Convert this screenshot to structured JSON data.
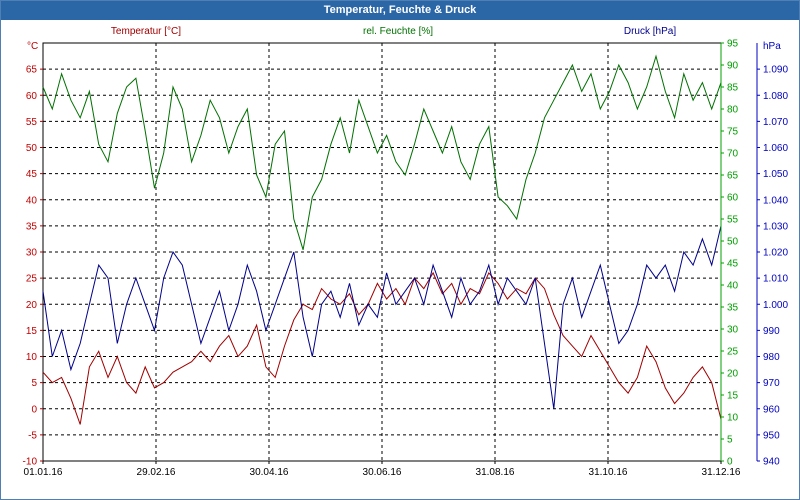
{
  "window": {
    "title": "Temperatur, Feuchte & Druck"
  },
  "chart_data": {
    "type": "line",
    "title": "Temperatur, Feuchte & Druck",
    "grid": true,
    "x_ticks": [
      "01.01.16",
      "29.02.16",
      "30.04.16",
      "30.06.16",
      "31.08.16",
      "31.10.16",
      "31.12.16"
    ],
    "xlim": [
      0,
      365
    ],
    "axes": {
      "temp": {
        "unit_label": "°C",
        "ylim": [
          -10,
          70
        ],
        "ticks": [
          -10,
          -5,
          0,
          5,
          10,
          15,
          20,
          25,
          30,
          35,
          40,
          45,
          50,
          55,
          60,
          65
        ],
        "color": "#c00000"
      },
      "hum": {
        "unit_label": "%",
        "ylim": [
          0,
          95
        ],
        "ticks": [
          0,
          5,
          10,
          15,
          20,
          25,
          30,
          35,
          40,
          45,
          50,
          55,
          60,
          65,
          70,
          75,
          80,
          85,
          90,
          95
        ],
        "color": "#00a000"
      },
      "press": {
        "unit_label": "hPa",
        "ylim": [
          940,
          1100
        ],
        "ticks": [
          "940",
          "950",
          "960",
          "970",
          "980",
          "990",
          "1.000",
          "1.010",
          "1.020",
          "1.030",
          "1.040",
          "1.050",
          "1.060",
          "1.070",
          "1.080",
          "1.090"
        ],
        "color": "#0000c0"
      }
    },
    "series": [
      {
        "name": "Temperatur [°C]",
        "axis": "temp",
        "color": "#a00000",
        "x": [
          0,
          5,
          10,
          15,
          20,
          25,
          30,
          35,
          40,
          45,
          50,
          55,
          60,
          65,
          70,
          75,
          80,
          85,
          90,
          95,
          100,
          105,
          110,
          115,
          120,
          125,
          130,
          135,
          140,
          145,
          150,
          155,
          160,
          165,
          170,
          175,
          180,
          185,
          190,
          195,
          200,
          205,
          210,
          215,
          220,
          225,
          230,
          235,
          240,
          245,
          250,
          255,
          260,
          265,
          270,
          275,
          280,
          285,
          290,
          295,
          300,
          305,
          310,
          315,
          320,
          325,
          330,
          335,
          340,
          345,
          350,
          355,
          360,
          365
        ],
        "y": [
          7,
          5,
          6,
          2,
          -3,
          8,
          11,
          6,
          10,
          5,
          3,
          8,
          4,
          5,
          7,
          8,
          9,
          11,
          9,
          12,
          14,
          10,
          12,
          16,
          8,
          6,
          12,
          17,
          20,
          19,
          23,
          21,
          20,
          22,
          18,
          20,
          24,
          21,
          23,
          20,
          25,
          23,
          26,
          22,
          24,
          20,
          23,
          22,
          26,
          24,
          21,
          23,
          22,
          25,
          23,
          18,
          14,
          12,
          10,
          14,
          11,
          8,
          5,
          3,
          6,
          12,
          9,
          4,
          1,
          3,
          6,
          8,
          5,
          -2
        ]
      },
      {
        "name": "rel. Feuchte [%]",
        "axis": "hum",
        "color": "#007000",
        "x": [
          0,
          5,
          10,
          15,
          20,
          25,
          30,
          35,
          40,
          45,
          50,
          55,
          60,
          65,
          70,
          75,
          80,
          85,
          90,
          95,
          100,
          105,
          110,
          115,
          120,
          125,
          130,
          135,
          140,
          145,
          150,
          155,
          160,
          165,
          170,
          175,
          180,
          185,
          190,
          195,
          200,
          205,
          210,
          215,
          220,
          225,
          230,
          235,
          240,
          245,
          250,
          255,
          260,
          265,
          270,
          275,
          280,
          285,
          290,
          295,
          300,
          305,
          310,
          315,
          320,
          325,
          330,
          335,
          340,
          345,
          350,
          355,
          360,
          365
        ],
        "y": [
          85,
          80,
          88,
          82,
          78,
          84,
          72,
          68,
          79,
          85,
          87,
          75,
          62,
          70,
          85,
          80,
          68,
          74,
          82,
          78,
          70,
          76,
          80,
          65,
          60,
          72,
          75,
          55,
          48,
          60,
          64,
          72,
          78,
          70,
          82,
          76,
          70,
          74,
          68,
          65,
          72,
          80,
          75,
          70,
          76,
          68,
          64,
          72,
          76,
          60,
          58,
          55,
          64,
          70,
          78,
          82,
          86,
          90,
          84,
          88,
          80,
          84,
          90,
          86,
          80,
          85,
          92,
          84,
          78,
          88,
          82,
          86,
          80,
          86
        ]
      },
      {
        "name": "Druck [hPa]",
        "axis": "press",
        "color": "#00008b",
        "x": [
          0,
          5,
          10,
          15,
          20,
          25,
          30,
          35,
          40,
          45,
          50,
          55,
          60,
          65,
          70,
          75,
          80,
          85,
          90,
          95,
          100,
          105,
          110,
          115,
          120,
          125,
          130,
          135,
          140,
          145,
          150,
          155,
          160,
          165,
          170,
          175,
          180,
          185,
          190,
          195,
          200,
          205,
          210,
          215,
          220,
          225,
          230,
          235,
          240,
          245,
          250,
          255,
          260,
          265,
          270,
          275,
          280,
          285,
          290,
          295,
          300,
          305,
          310,
          315,
          320,
          325,
          330,
          335,
          340,
          345,
          350,
          355,
          360,
          365
        ],
        "y": [
          1005,
          980,
          990,
          975,
          985,
          1000,
          1015,
          1010,
          985,
          1000,
          1010,
          1000,
          990,
          1010,
          1020,
          1015,
          1000,
          985,
          995,
          1005,
          990,
          1000,
          1015,
          1005,
          990,
          1000,
          1010,
          1020,
          995,
          980,
          1000,
          1005,
          995,
          1008,
          992,
          1000,
          995,
          1012,
          1000,
          1005,
          1010,
          1000,
          1015,
          1005,
          995,
          1010,
          1000,
          1005,
          1015,
          1000,
          1010,
          1005,
          1000,
          1010,
          985,
          960,
          1000,
          1010,
          995,
          1005,
          1015,
          1000,
          985,
          990,
          1000,
          1015,
          1010,
          1015,
          1005,
          1020,
          1015,
          1025,
          1015,
          1030
        ]
      }
    ],
    "series_labels": {
      "temp": "Temperatur [°C]",
      "hum": "rel. Feuchte [%]",
      "press": "Druck [hPa]"
    }
  }
}
